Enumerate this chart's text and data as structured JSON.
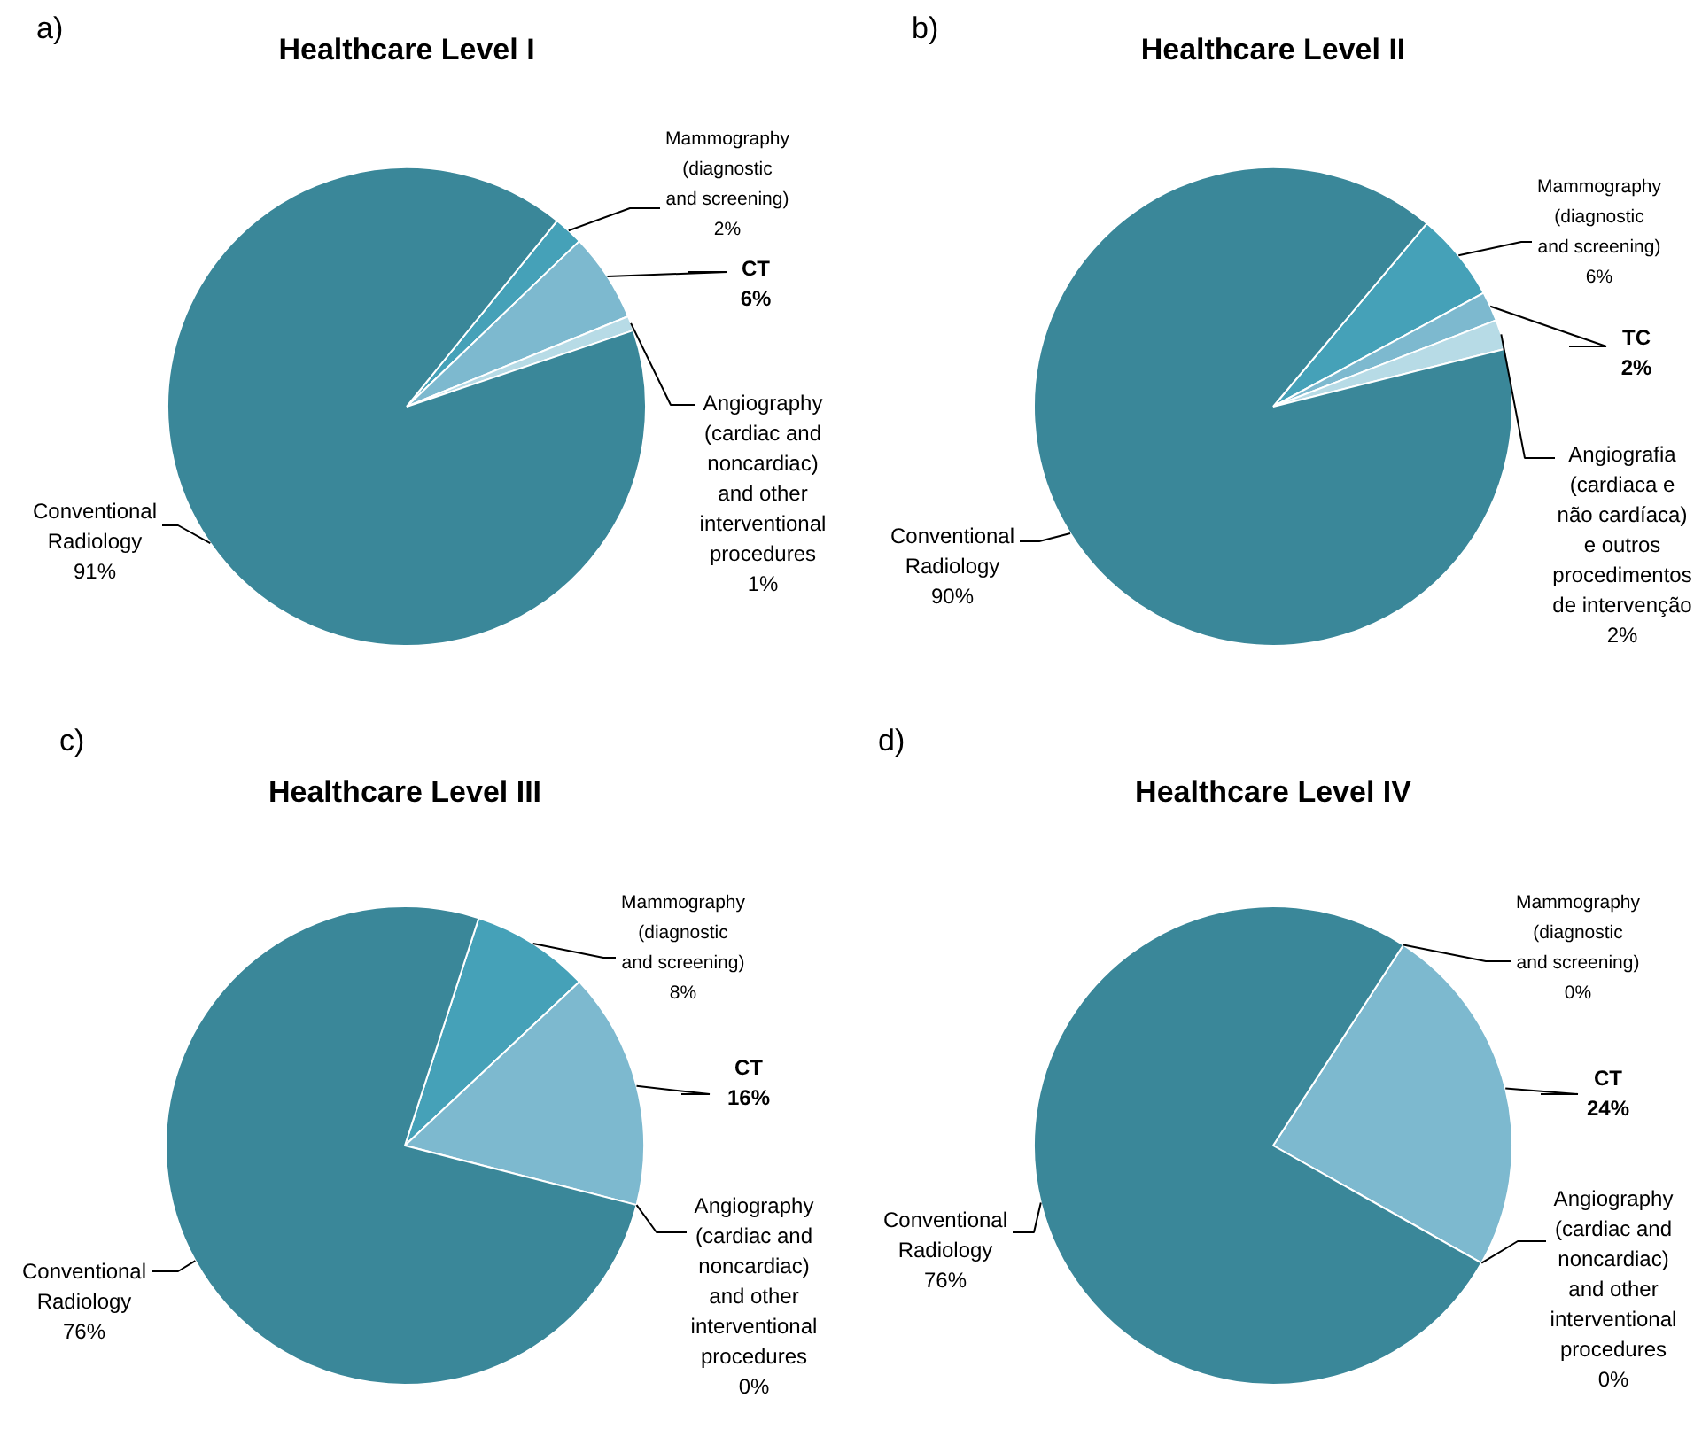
{
  "chart_data": [
    {
      "type": "pie",
      "title": "Healthcare Level I",
      "annotations": [
        "a)"
      ],
      "categories": [
        "Mammography (diagnostic and screening)",
        "CT",
        "Angiography (cardiac and noncardiac) and other interventional procedures",
        "Conventional Radiology"
      ],
      "values": [
        2,
        6,
        1,
        91
      ],
      "value_labels": [
        "2%",
        "6%",
        "1%",
        "91%"
      ],
      "colors": [
        "#45a1b8",
        "#7db9cf",
        "#b7dbe6",
        "#3a8799"
      ]
    },
    {
      "type": "pie",
      "title": "Healthcare Level II",
      "annotations": [
        "b)"
      ],
      "categories": [
        "Mammography (diagnostic and screening)",
        "TC",
        "Angiografia (cardiaca e não cardíaca) e outros procedimentos de intervenção",
        "Conventional Radiology"
      ],
      "values": [
        6,
        2,
        2,
        90
      ],
      "value_labels": [
        "6%",
        "2%",
        "2%",
        "90%"
      ],
      "colors": [
        "#45a1b8",
        "#7db9cf",
        "#b7dbe6",
        "#3a8799"
      ]
    },
    {
      "type": "pie",
      "title": "Healthcare Level III",
      "annotations": [
        "c)"
      ],
      "categories": [
        "Mammography (diagnostic and screening)",
        "CT",
        "Angiography (cardiac and noncardiac) and other interventional procedures",
        "Conventional Radiology"
      ],
      "values": [
        8,
        16,
        0,
        76
      ],
      "value_labels": [
        "8%",
        "16%",
        "0%",
        "76%"
      ],
      "colors": [
        "#45a1b8",
        "#7db9cf",
        "#b7dbe6",
        "#3a8799"
      ]
    },
    {
      "type": "pie",
      "title": "Healthcare Level IV",
      "annotations": [
        "d)"
      ],
      "categories": [
        "Mammography (diagnostic and screening)",
        "CT",
        "Angiography (cardiac and noncardiac) and other interventional procedures",
        "Conventional Radiology"
      ],
      "values": [
        0,
        24,
        0,
        76
      ],
      "value_labels": [
        "0%",
        "24%",
        "0%",
        "76%"
      ],
      "colors": [
        "#45a1b8",
        "#7db9cf",
        "#b7dbe6",
        "#3a8799"
      ]
    }
  ]
}
